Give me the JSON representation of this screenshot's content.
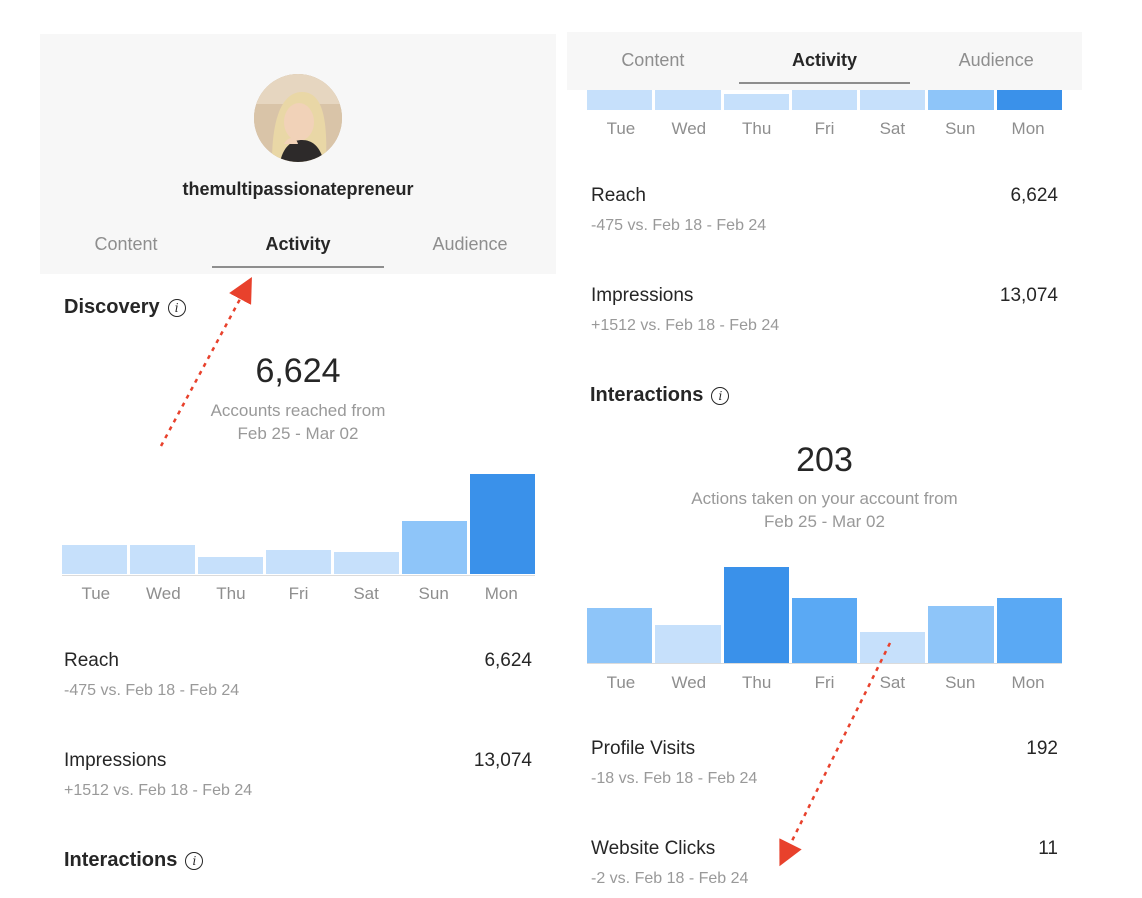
{
  "left": {
    "username": "themultipassionatepreneur",
    "tabs": [
      {
        "label": "Content",
        "active": false
      },
      {
        "label": "Activity",
        "active": true
      },
      {
        "label": "Audience",
        "active": false
      }
    ],
    "discovery": {
      "title": "Discovery",
      "value": "6,624",
      "caption_line1": "Accounts reached from",
      "caption_line2": "Feb 25 - Mar 02"
    },
    "reach": {
      "label": "Reach",
      "value": "6,624",
      "sub": "-475 vs. Feb 18 - Feb 24"
    },
    "impressions": {
      "label": "Impressions",
      "value": "13,074",
      "sub": "+1512 vs. Feb 18 - Feb 24"
    },
    "interactions_title": "Interactions"
  },
  "right": {
    "tabs": [
      {
        "label": "Content",
        "active": false
      },
      {
        "label": "Activity",
        "active": true
      },
      {
        "label": "Audience",
        "active": false
      }
    ],
    "reach": {
      "label": "Reach",
      "value": "6,624",
      "sub": "-475 vs. Feb 18 - Feb 24"
    },
    "impressions": {
      "label": "Impressions",
      "value": "13,074",
      "sub": "+1512 vs. Feb 18 - Feb 24"
    },
    "interactions": {
      "title": "Interactions",
      "value": "203",
      "caption_line1": "Actions taken on your account from",
      "caption_line2": "Feb 25 - Mar 02"
    },
    "profile_visits": {
      "label": "Profile Visits",
      "value": "192",
      "sub": "-18 vs. Feb 18 - Feb 24"
    },
    "website_clicks": {
      "label": "Website Clicks",
      "value": "11",
      "sub": "-2 vs. Feb 18 - Feb 24"
    }
  },
  "days": [
    "Tue",
    "Wed",
    "Thu",
    "Fri",
    "Sat",
    "Sun",
    "Mon"
  ],
  "chart_data": [
    {
      "type": "bar",
      "title": "Discovery",
      "categories": [
        "Tue",
        "Wed",
        "Thu",
        "Fri",
        "Sat",
        "Sun",
        "Mon"
      ],
      "values": [
        0.29,
        0.29,
        0.17,
        0.24,
        0.22,
        0.53,
        1.0
      ],
      "value_scale": "relative to highest day",
      "colors": [
        "#c6e0fb",
        "#c6e0fb",
        "#c6e0fb",
        "#c6e0fb",
        "#c6e0fb",
        "#8ec5f9",
        "#3a91ea"
      ]
    },
    {
      "type": "bar",
      "title": "Interactions",
      "categories": [
        "Tue",
        "Wed",
        "Thu",
        "Fri",
        "Sat",
        "Sun",
        "Mon"
      ],
      "values": [
        0.57,
        0.4,
        1.0,
        0.68,
        0.32,
        0.59,
        0.68
      ],
      "value_scale": "relative to highest day",
      "colors": [
        "#8ec5f9",
        "#c6e0fb",
        "#3a91ea",
        "#5aa9f4",
        "#c6e0fb",
        "#8ec5f9",
        "#5aa9f4"
      ]
    }
  ],
  "colors": {
    "accent_dark": "#3a91ea",
    "accent_mid": "#5aa9f4",
    "accent_light": "#8ec5f9",
    "accent_pale": "#c6e0fb",
    "annotation_arrow": "#e8412c"
  }
}
